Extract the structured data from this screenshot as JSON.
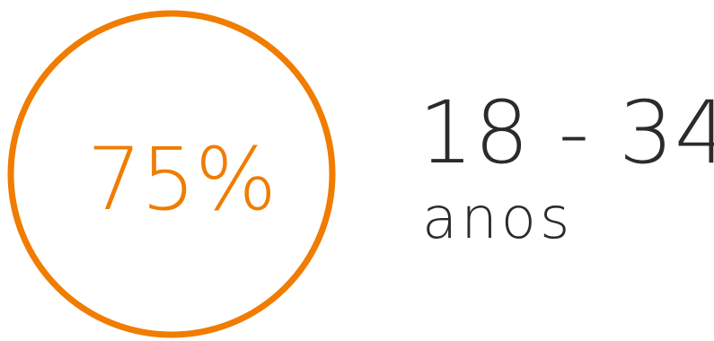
{
  "stat": {
    "percent_label": "75%",
    "percent_value": 75,
    "age_range": "18 - 34",
    "unit_label": "anos"
  },
  "colors": {
    "accent": "#F07C00",
    "text": "#2b2b2b",
    "background": "#ffffff"
  }
}
